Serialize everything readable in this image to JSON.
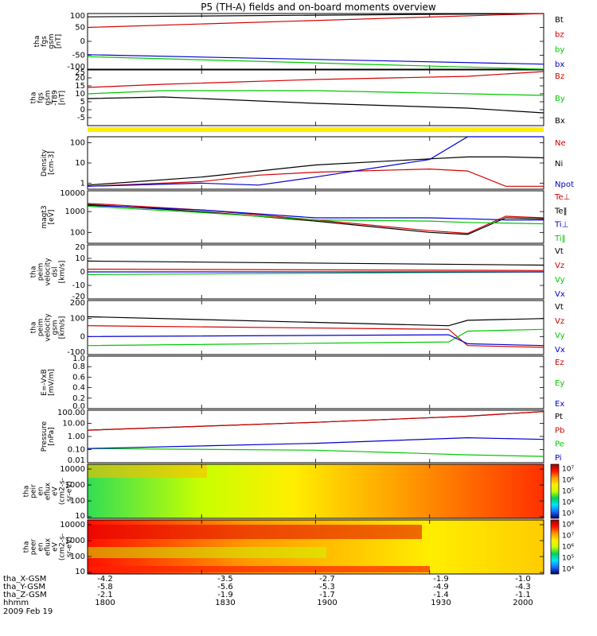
{
  "title": "P5 (TH-A) fields and on-board moments overview",
  "colors": {
    "black": "#000000",
    "red": "#d40000",
    "green": "#00c800",
    "blue": "#0000d0",
    "yellow": "#ffee00"
  },
  "footer": {
    "row_labels": [
      "tha_X-GSM",
      "tha_Y-GSM",
      "tha_Z-GSM",
      "hhmm"
    ],
    "date": "2009 Feb 19",
    "columns": [
      {
        "x": -4.2,
        "y": -5.8,
        "z": -2.1,
        "t": "1800"
      },
      {
        "x": -3.5,
        "y": -5.6,
        "z": -1.9,
        "t": "1830"
      },
      {
        "x": -2.7,
        "y": -5.3,
        "z": -1.7,
        "t": "1900"
      },
      {
        "x": -1.9,
        "y": -4.9,
        "z": -1.4,
        "t": "1930"
      },
      {
        "x": -1.0,
        "y": -4.3,
        "z": -1.1,
        "t": "2000"
      }
    ]
  },
  "chart_data": [
    {
      "type": "line",
      "ylabel": [
        "tha",
        "fgs",
        "gsm",
        "[nT]"
      ],
      "ylim": [
        -100,
        100
      ],
      "yticks": [
        "100",
        "50",
        "0",
        "-50",
        "-100"
      ],
      "x": [
        0,
        120
      ],
      "series": [
        {
          "name": "Bt",
          "color": "black",
          "values": [
            88,
            112
          ]
        },
        {
          "name": "bz",
          "color": "red",
          "values": [
            50,
            112
          ]
        },
        {
          "name": "by",
          "color": "green",
          "values": [
            -55,
            -115
          ]
        },
        {
          "name": "bx",
          "color": "blue",
          "values": [
            -48,
            -82
          ]
        }
      ]
    },
    {
      "type": "line",
      "ylabel": [
        "tha",
        "fgs",
        "gsm",
        "-T89",
        "[nT]"
      ],
      "ylim": [
        -10,
        25
      ],
      "yticks": [
        "25",
        "20",
        "15",
        "10",
        "5",
        "0",
        "-5"
      ],
      "x": [
        0,
        20,
        60,
        100,
        120
      ],
      "series": [
        {
          "name": "Bz",
          "color": "red",
          "values": [
            14,
            16,
            19,
            21,
            24
          ]
        },
        {
          "name": "By",
          "color": "green",
          "values": [
            10,
            12,
            12,
            10,
            9
          ]
        },
        {
          "name": "Bx",
          "color": "black",
          "values": [
            7,
            8,
            4,
            1,
            -2
          ]
        }
      ]
    },
    {
      "type": "line",
      "ylabel": [
        "Density",
        "[cm-3]"
      ],
      "ylog": true,
      "ylim": [
        0.5,
        200
      ],
      "yticks": [
        "100",
        "10",
        "1"
      ],
      "x": [
        0,
        30,
        45,
        60,
        90,
        100,
        110,
        120
      ],
      "series": [
        {
          "name": "Ne",
          "color": "red",
          "values": [
            0.7,
            1.2,
            2.5,
            3.5,
            5,
            4,
            0.7,
            0.7
          ]
        },
        {
          "name": "Ni",
          "color": "black",
          "values": [
            0.8,
            2,
            4,
            8,
            16,
            20,
            20,
            18
          ]
        },
        {
          "name": "Npot",
          "color": "blue",
          "values": [
            0.7,
            1,
            0.8,
            2,
            15,
            200,
            200,
            200
          ]
        }
      ]
    },
    {
      "type": "line",
      "ylabel": [
        "magt3",
        "[eV]"
      ],
      "ylog": true,
      "ylim": [
        30,
        10000
      ],
      "yticks": [
        "10000",
        "1000",
        "100"
      ],
      "x": [
        0,
        30,
        60,
        90,
        100,
        110,
        120
      ],
      "series": [
        {
          "name": "Te⊥",
          "color": "red",
          "values": [
            2500,
            1200,
            400,
            120,
            90,
            600,
            500
          ]
        },
        {
          "name": "Te‖",
          "color": "black",
          "values": [
            2200,
            1000,
            350,
            100,
            80,
            500,
            450
          ]
        },
        {
          "name": "Ti⊥",
          "color": "blue",
          "values": [
            2000,
            1200,
            500,
            500,
            450,
            400,
            400
          ]
        },
        {
          "name": "Ti‖",
          "color": "green",
          "values": [
            1800,
            900,
            400,
            350,
            300,
            280,
            260
          ]
        }
      ]
    },
    {
      "type": "line",
      "ylabel": [
        "tha",
        "peim",
        "velocity",
        "dsl",
        "[km/s]"
      ],
      "ylim": [
        -20,
        20
      ],
      "yticks": [
        "20",
        "10",
        "0",
        "-10",
        "-20"
      ],
      "x": [
        0,
        120
      ],
      "series": [
        {
          "name": "Vt",
          "color": "black",
          "values": [
            8,
            5
          ]
        },
        {
          "name": "Vz",
          "color": "red",
          "values": [
            2,
            1
          ]
        },
        {
          "name": "Vy",
          "color": "green",
          "values": [
            -2,
            0
          ]
        },
        {
          "name": "Vx",
          "color": "blue",
          "values": [
            0,
            0
          ]
        }
      ]
    },
    {
      "type": "line",
      "ylabel": [
        "tha",
        "peim",
        "velocity",
        "gsm",
        "[km/s]"
      ],
      "ylim": [
        -100,
        200
      ],
      "yticks": [
        "200",
        "100",
        "0",
        "-100"
      ],
      "x": [
        0,
        95,
        100,
        120
      ],
      "series": [
        {
          "name": "Vt",
          "color": "black",
          "values": [
            110,
            60,
            90,
            100
          ]
        },
        {
          "name": "Vz",
          "color": "red",
          "values": [
            60,
            40,
            -50,
            -60
          ]
        },
        {
          "name": "Vy",
          "color": "green",
          "values": [
            -50,
            -30,
            30,
            40
          ]
        },
        {
          "name": "Vx",
          "color": "blue",
          "values": [
            0,
            10,
            -40,
            -50
          ]
        }
      ]
    },
    {
      "type": "line",
      "ylabel": [
        "E=-VxB",
        "[mV/m]"
      ],
      "ylim": [
        0,
        1
      ],
      "yticks": [
        "1.0",
        "0.8",
        "0.6",
        "0.4",
        "0.2",
        "0.0"
      ],
      "x": [],
      "series": [
        {
          "name": "Ez",
          "color": "red",
          "values": []
        },
        {
          "name": "Ey",
          "color": "green",
          "values": []
        },
        {
          "name": "Ex",
          "color": "blue",
          "values": []
        }
      ]
    },
    {
      "type": "line",
      "ylabel": [
        "Pressure",
        "[nPa]"
      ],
      "ylog": true,
      "ylim": [
        0.01,
        100
      ],
      "yticks": [
        "100.00",
        "10.00",
        "1.00",
        "0.10",
        "0.01"
      ],
      "x": [
        0,
        60,
        100,
        120
      ],
      "series": [
        {
          "name": "Pt",
          "color": "black",
          "values": [
            3,
            12,
            35,
            80
          ]
        },
        {
          "name": "Pb",
          "color": "red",
          "values": [
            3,
            12,
            35,
            80
          ]
        },
        {
          "name": "Pe",
          "color": "green",
          "values": [
            0.12,
            0.09,
            0.04,
            0.03
          ]
        },
        {
          "name": "Pi",
          "color": "blue",
          "values": [
            0.12,
            0.3,
            0.8,
            0.6
          ]
        }
      ]
    },
    {
      "type": "heatmap",
      "ylabel": [
        "tha",
        "peir",
        "en",
        "eflux",
        "eV",
        "(cm2-s-",
        "sr-eV)"
      ],
      "ylog": true,
      "ylim": [
        8,
        20000
      ],
      "yticks": [
        "10000",
        "1000",
        "100",
        "10"
      ],
      "cbar_ticks": [
        "10⁷",
        "10⁶",
        "10⁵",
        "10⁴",
        "10³"
      ],
      "cbar_range": [
        300,
        10000000
      ],
      "cbar_log": true,
      "colorscale": [
        "#000070",
        "#1a6cff",
        "#00e6ff",
        "#00d25a",
        "#c8ff00",
        "#ffee00",
        "#ff9a00",
        "#ff1000",
        "#a00000"
      ]
    },
    {
      "type": "heatmap",
      "ylabel": [
        "tha",
        "peer",
        "en",
        "eflux",
        "eV",
        "(cm2-s-",
        "sr-eV)"
      ],
      "ylog": true,
      "ylim": [
        8,
        20000
      ],
      "yticks": [
        "10000",
        "1000",
        "100",
        "10"
      ],
      "cbar_ticks": [
        "10⁸",
        "10⁷",
        "10⁶",
        "10⁵",
        "10⁴"
      ],
      "cbar_range": [
        5000,
        100000000
      ],
      "cbar_log": true,
      "colorscale": [
        "#000070",
        "#1a6cff",
        "#00e6ff",
        "#00d25a",
        "#c8ff00",
        "#ffee00",
        "#ff9a00",
        "#ff1000",
        "#a00000"
      ]
    }
  ]
}
